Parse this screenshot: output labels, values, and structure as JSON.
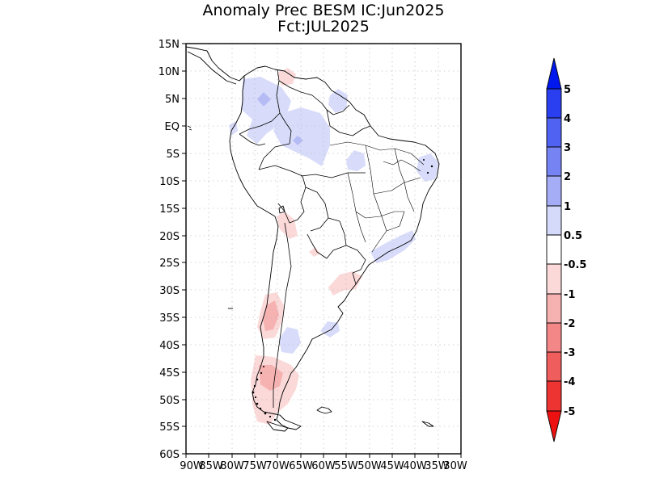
{
  "title": {
    "line1": "Anomaly Prec BESM IC:Jun2025",
    "line2": "Fct:JUL2025"
  },
  "map": {
    "lat_labels": [
      "15N",
      "10N",
      "5N",
      "EQ",
      "5S",
      "10S",
      "15S",
      "20S",
      "25S",
      "30S",
      "35S",
      "40S",
      "45S",
      "50S",
      "55S",
      "60S"
    ],
    "lon_labels": [
      "90W",
      "85W",
      "80W",
      "75W",
      "70W",
      "65W",
      "60W",
      "55W",
      "50W",
      "45W",
      "40W",
      "35W",
      "30W"
    ],
    "lat_range": [
      15,
      -60
    ],
    "lon_range": [
      -90,
      -30
    ],
    "anomaly_regions": [
      {
        "name": "northwest-colombia",
        "category": "0.5-1",
        "color": "#d8dcfa"
      },
      {
        "name": "north-amazon",
        "category": "0.5-1",
        "color": "#d8dcfa"
      },
      {
        "name": "amazon-core-1-2",
        "category": "1-2",
        "color": "#b5bcf5"
      },
      {
        "name": "guianas",
        "category": "0.5-1",
        "color": "#d8dcfa"
      },
      {
        "name": "central-brazil-spot",
        "category": "0.5-1",
        "color": "#d8dcfa"
      },
      {
        "name": "northeast-brazil-coast",
        "category": "0.5-1",
        "color": "#d8dcfa"
      },
      {
        "name": "southeast-brazil-coast",
        "category": "0.5-1",
        "color": "#d8dcfa"
      },
      {
        "name": "argentina-pampas-spot",
        "category": "0.5-1",
        "color": "#d8dcfa"
      },
      {
        "name": "buenos-aires-spot",
        "category": "0.5-1",
        "color": "#d8dcfa"
      },
      {
        "name": "venezuela-dry",
        "category": "-1--0.5",
        "color": "#fbd9d9"
      },
      {
        "name": "north-chile-dry",
        "category": "-1--0.5",
        "color": "#fbd9d9"
      },
      {
        "name": "south-brazil-uruguay-dry",
        "category": "-1--0.5",
        "color": "#fbd9d9"
      },
      {
        "name": "central-chile-dry",
        "category": "-1--0.5",
        "color": "#fbd9d9"
      },
      {
        "name": "central-chile-core",
        "category": "-2--1",
        "color": "#f6b1b1"
      },
      {
        "name": "patagonia-dry",
        "category": "-1--0.5",
        "color": "#fbd9d9"
      },
      {
        "name": "patagonia-core",
        "category": "-2--1",
        "color": "#f6b1b1"
      }
    ]
  },
  "colorbar": {
    "labels": [
      "5",
      "4",
      "3",
      "2",
      "1",
      "0.5",
      "-0.5",
      "-1",
      "-2",
      "-3",
      "-4",
      "-5"
    ],
    "bins": [
      {
        "range": ">5",
        "color": "#0018ee"
      },
      {
        "range": "4-5",
        "color": "#2a3ff0"
      },
      {
        "range": "3-4",
        "color": "#4f62f2"
      },
      {
        "range": "2-3",
        "color": "#7683f3"
      },
      {
        "range": "1-2",
        "color": "#a5adf6"
      },
      {
        "range": "0.5-1",
        "color": "#d5d9fa"
      },
      {
        "range": "-0.5-0.5",
        "color": "#ffffff"
      },
      {
        "range": "-1--0.5",
        "color": "#fbd9d9"
      },
      {
        "range": "-2--1",
        "color": "#f6b1b1"
      },
      {
        "range": "-3--2",
        "color": "#f38787"
      },
      {
        "range": "-4--3",
        "color": "#f05d5d"
      },
      {
        "range": "-5--4",
        "color": "#ee3333"
      },
      {
        "range": "<-5",
        "color": "#ee1111"
      }
    ]
  }
}
